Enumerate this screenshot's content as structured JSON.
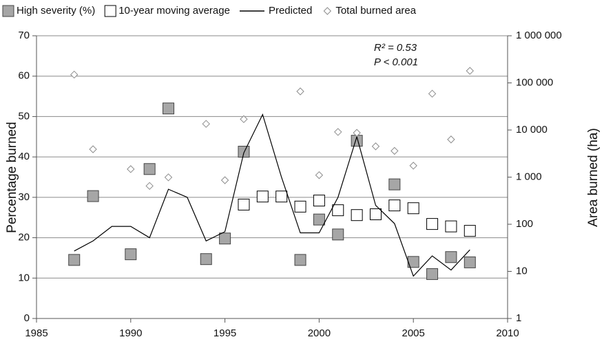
{
  "chart_data": {
    "type": "line",
    "ylabel": "Percentage burned",
    "y2label": "Area burned (ha)",
    "xlim": [
      1985,
      2010
    ],
    "xticks": [
      1985,
      1990,
      1995,
      2000,
      2005,
      2010
    ],
    "ylim": [
      0,
      70
    ],
    "yticks": [
      0,
      10,
      20,
      30,
      40,
      50,
      60,
      70
    ],
    "y2lim": [
      1,
      1000000
    ],
    "y2log": true,
    "y2ticks": [
      1,
      10,
      100,
      {
        "value": 1000,
        "label": "1 000"
      },
      {
        "value": 10000,
        "label": "10 000"
      },
      {
        "value": 100000,
        "label": "100 000"
      },
      {
        "value": 1000000,
        "label": "1 000 000"
      }
    ],
    "grid": true,
    "annotations": [
      "R² = 0.53",
      "P < 0.001"
    ],
    "series": [
      {
        "name": "High severity (%)",
        "marker": "filled-square",
        "color": "#a6a6a6",
        "x": [
          1987,
          1988,
          1990,
          1991,
          1992,
          1994,
          1995,
          1996,
          1999,
          2000,
          2001,
          2002,
          2003,
          2004,
          2005,
          2006,
          2007,
          2008
        ],
        "values": [
          14.5,
          30.3,
          15.9,
          37,
          52,
          14.7,
          19.8,
          41.3,
          14.5,
          24.5,
          20.8,
          44,
          25.8,
          33.2,
          14,
          11,
          15.2,
          13.9
        ]
      },
      {
        "name": "10-year moving average",
        "marker": "open-square",
        "color": "#000000",
        "x": [
          1996,
          1997,
          1998,
          1999,
          2000,
          2001,
          2002,
          2003,
          2004,
          2005,
          2006,
          2007,
          2008
        ],
        "values": [
          28.2,
          30.2,
          30.2,
          27.7,
          29.2,
          26.8,
          25.6,
          25.8,
          28,
          27.3,
          23.4,
          22.8,
          21.7
        ]
      },
      {
        "name": "Predicted",
        "marker": "line",
        "color": "#000000",
        "x": [
          1987,
          1988,
          1989,
          1990,
          1991,
          1992,
          1993,
          1994,
          1995,
          1996,
          1997,
          1998,
          1999,
          2000,
          2001,
          2002,
          2003,
          2004,
          2005,
          2006,
          2007,
          2008
        ],
        "values": [
          16.7,
          19.2,
          22.8,
          22.8,
          20,
          32,
          30,
          19.2,
          21.5,
          41,
          50.5,
          35,
          21.2,
          21.2,
          30,
          45,
          28,
          23.5,
          10.5,
          15.5,
          12,
          17
        ]
      },
      {
        "name": "Total burned area",
        "marker": "open-diamond",
        "color": "#8c8c8c",
        "axis": "y2",
        "x": [
          1987,
          1988,
          1990,
          1991,
          1992,
          1994,
          1995,
          1996,
          1999,
          2000,
          2001,
          2002,
          2003,
          2004,
          2005,
          2006,
          2007,
          2008
        ],
        "values": [
          150000,
          3900,
          1480,
          650,
          990,
          13500,
          860,
          17000,
          66000,
          1100,
          9100,
          8700,
          4500,
          3600,
          1750,
          59000,
          6300,
          180000
        ]
      }
    ]
  }
}
